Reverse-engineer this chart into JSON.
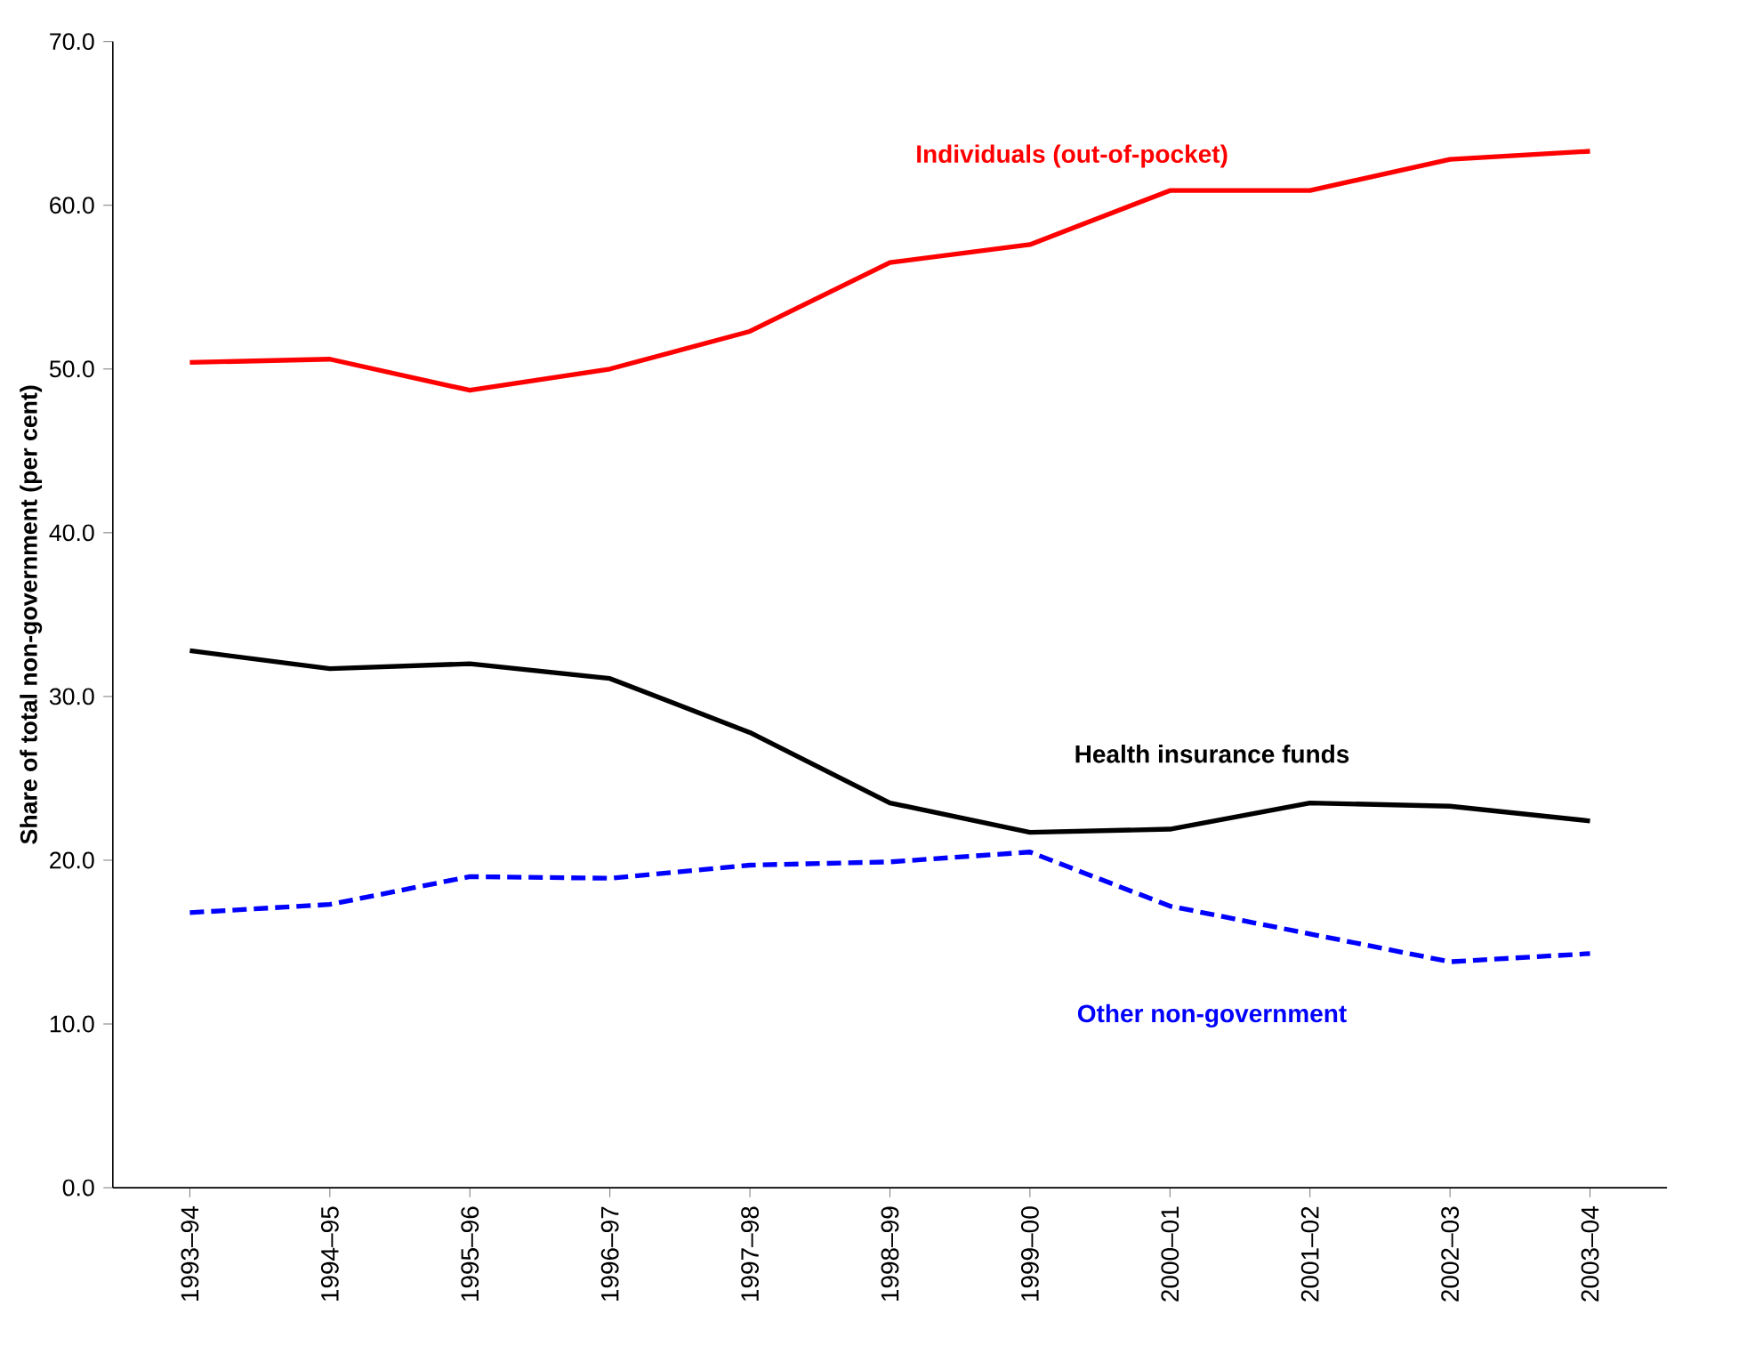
{
  "chart_data": {
    "type": "line",
    "ylabel": "Share of total non-government (per cent)",
    "categories": [
      "1993–94",
      "1994–95",
      "1995–96",
      "1996–97",
      "1997–98",
      "1998–99",
      "1999–00",
      "2000–01",
      "2001–02",
      "2002–03",
      "2003–04"
    ],
    "series": [
      {
        "name": "Individuals (out-of-pocket)",
        "color": "#ff0000",
        "line_style": "solid",
        "values": [
          50.4,
          50.6,
          48.7,
          50.0,
          52.3,
          56.5,
          57.6,
          60.9,
          60.9,
          62.8,
          63.3
        ]
      },
      {
        "name": "Health insurance funds",
        "color": "#000000",
        "line_style": "solid",
        "values": [
          32.8,
          31.7,
          32.0,
          31.1,
          27.8,
          23.5,
          21.7,
          21.9,
          23.5,
          23.3,
          22.4
        ]
      },
      {
        "name": "Other non-government",
        "color": "#0000ff",
        "line_style": "dashed",
        "values": [
          16.8,
          17.3,
          19.0,
          18.9,
          19.7,
          19.9,
          20.5,
          17.2,
          15.5,
          13.8,
          14.3
        ]
      }
    ],
    "ylim": [
      0,
      70
    ],
    "yticks": [
      {
        "value": 0,
        "label": "0.0"
      },
      {
        "value": 10,
        "label": "10.0"
      },
      {
        "value": 20,
        "label": "20.0"
      },
      {
        "value": 30,
        "label": "30.0"
      },
      {
        "value": 40,
        "label": "40.0"
      },
      {
        "value": 50,
        "label": "50.0"
      },
      {
        "value": 60,
        "label": "60.0"
      },
      {
        "value": 70,
        "label": "70.0"
      }
    ],
    "grid": false,
    "legend": false,
    "marker": "none"
  }
}
